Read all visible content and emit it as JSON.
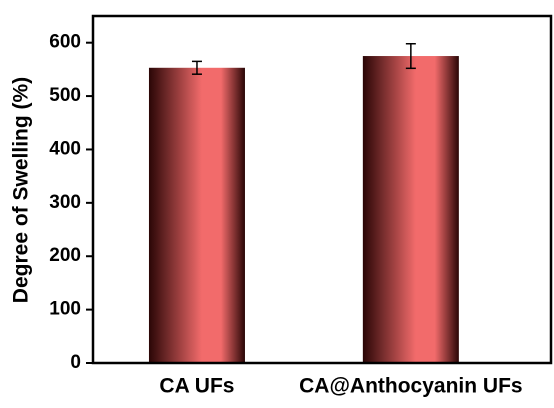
{
  "chart_data": {
    "type": "bar",
    "ylabel": "Degree of Swelling (%)",
    "categories": [
      "CA UFs",
      "CA@Anthocyanin UFs"
    ],
    "values": [
      553,
      575
    ],
    "errors": [
      12,
      23
    ],
    "color": "#f26b6b",
    "ylim": [
      0,
      650
    ],
    "yticks": [
      0,
      100,
      200,
      300,
      400,
      500,
      600
    ]
  }
}
